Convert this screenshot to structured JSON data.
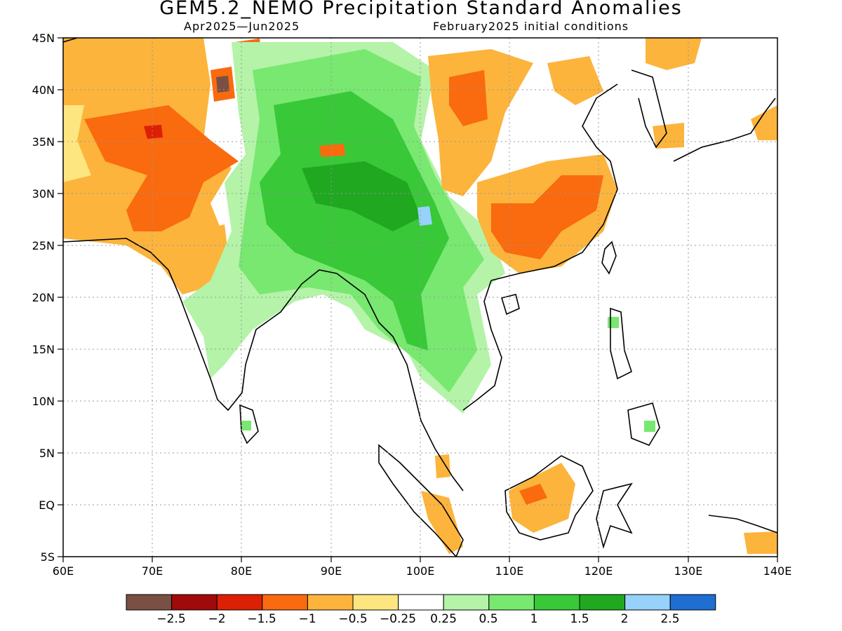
{
  "title": "GEM5.2_NEMO Precipitation Standard Anomalies",
  "subtitle_left": "Apr2025—Jun2025",
  "subtitle_right": "February2025 initial conditions",
  "map": {
    "region": "South and East Asia",
    "lon_range": [
      60,
      140
    ],
    "lat_range": [
      -5,
      45
    ],
    "grid": "dotted gray",
    "x_ticks": [
      "60E",
      "70E",
      "80E",
      "90E",
      "100E",
      "110E",
      "120E",
      "130E",
      "140E"
    ],
    "y_ticks": [
      "45N",
      "40N",
      "35N",
      "30N",
      "25N",
      "20N",
      "15N",
      "10N",
      "5N",
      "EQ",
      "5S"
    ],
    "land_outline_color": "#000000"
  },
  "colorbar": {
    "colors": [
      "#7a5044",
      "#a00a0a",
      "#dc2005",
      "#fa6a0f",
      "#fcb43c",
      "#fde680",
      "#ffffff",
      "#b4f3a8",
      "#78e870",
      "#38c838",
      "#20a820",
      "#96d2fa",
      "#1f6ed2"
    ],
    "labels": [
      "−2.5",
      "−2",
      "−1.5",
      "−1",
      "−0.5",
      "−0.25",
      "0.25",
      "0.5",
      "1",
      "1.5",
      "2",
      "2.5"
    ]
  }
}
